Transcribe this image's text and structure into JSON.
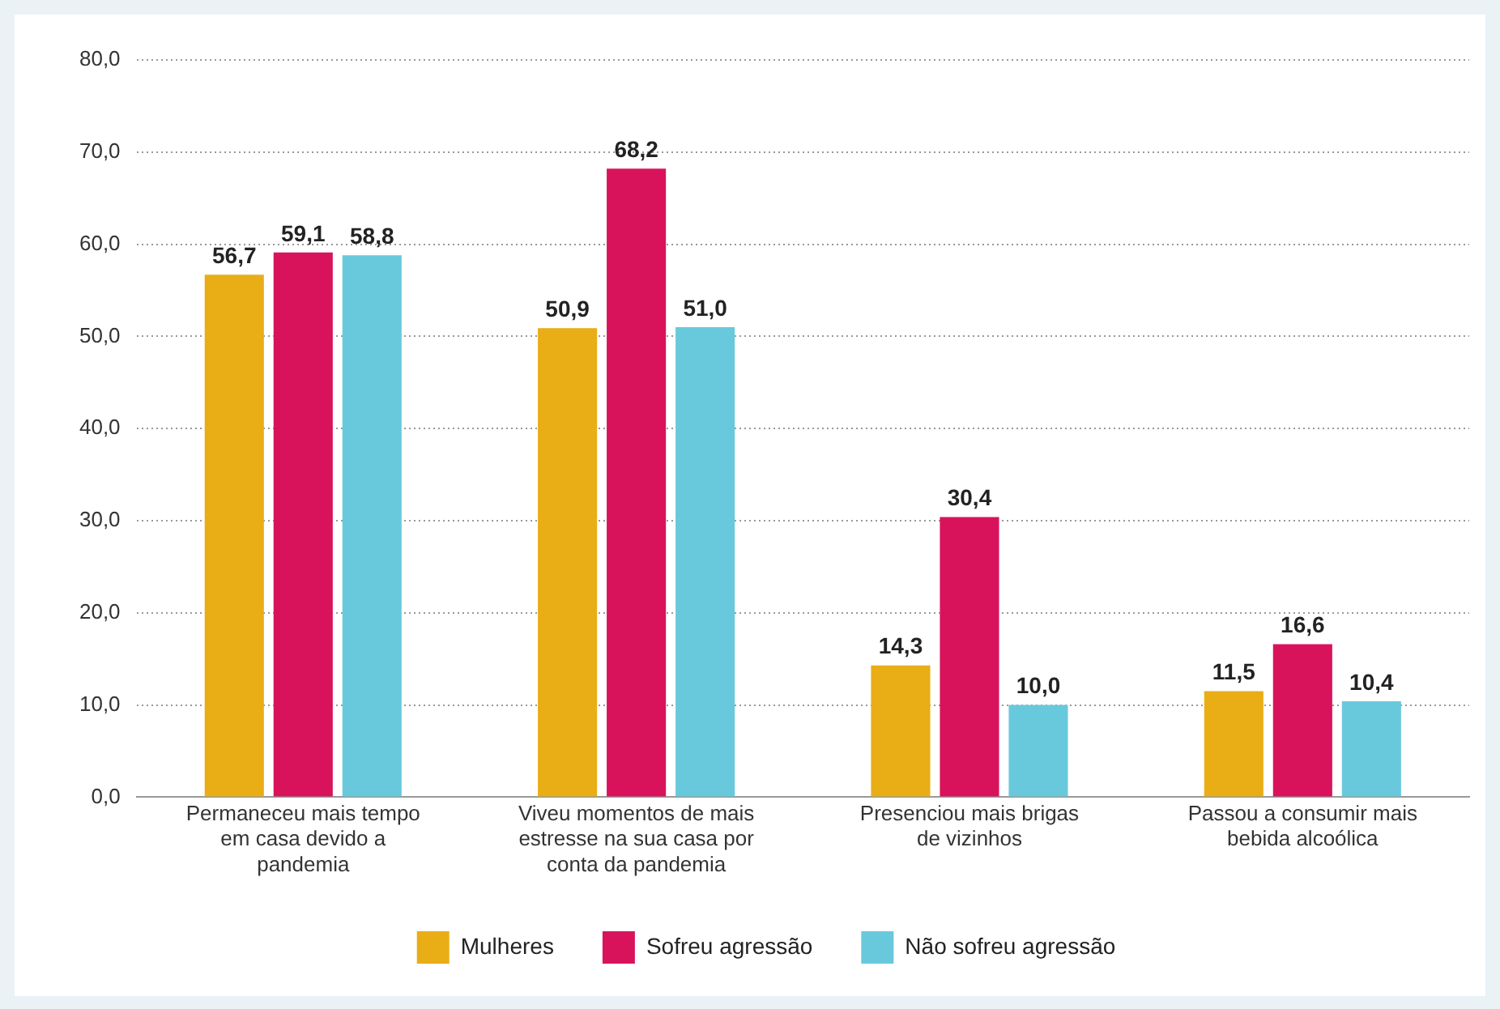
{
  "chart_data": {
    "type": "bar",
    "categories": [
      "Permaneceu mais tempo em casa devido a pandemia",
      "Viveu momentos de mais estresse na sua casa por conta da pandemia",
      "Presenciou mais brigas de vizinhos",
      "Passou a consumir mais bebida alcoólica"
    ],
    "series": [
      {
        "name": "Mulheres",
        "color": "#e9ad16",
        "values": [
          56.7,
          50.9,
          14.3,
          11.5
        ],
        "value_labels": [
          "56,7",
          "50,9",
          "14,3",
          "11,5"
        ]
      },
      {
        "name": "Sofreu agressão",
        "color": "#d9135b",
        "values": [
          59.1,
          68.2,
          30.4,
          16.6
        ],
        "value_labels": [
          "59,1",
          "68,2",
          "30,4",
          "16,6"
        ]
      },
      {
        "name": "Não sofreu agressão",
        "color": "#69c9dc",
        "values": [
          58.8,
          51.0,
          10.0,
          10.4
        ],
        "value_labels": [
          "58,8",
          "51,0",
          "10,0",
          "10,4"
        ]
      }
    ],
    "ylim": [
      0,
      80
    ],
    "yticks": [
      {
        "value": 0,
        "label": "0,0"
      },
      {
        "value": 10,
        "label": "10,0"
      },
      {
        "value": 20,
        "label": "20,0"
      },
      {
        "value": 30,
        "label": "30,0"
      },
      {
        "value": 40,
        "label": "40,0"
      },
      {
        "value": 50,
        "label": "50,0"
      },
      {
        "value": 60,
        "label": "60,0"
      },
      {
        "value": 70,
        "label": "70,0"
      },
      {
        "value": 80,
        "label": "80,0"
      }
    ],
    "grid": "y",
    "legend": "bottom"
  }
}
